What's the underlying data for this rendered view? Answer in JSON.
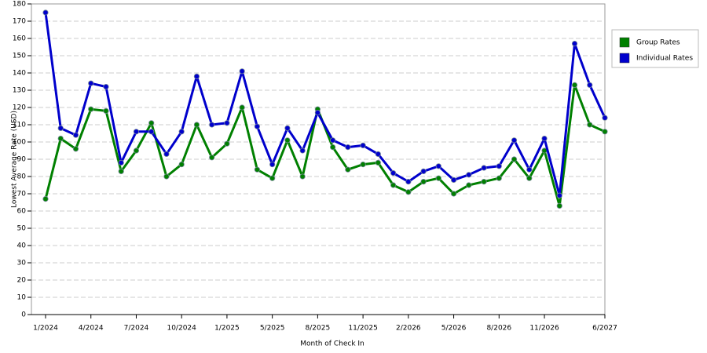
{
  "chart_data": {
    "type": "line",
    "x_label": "Month of Check In",
    "y_label": "Lowest Average Rate (USD)",
    "categories": [
      "1/2024",
      null,
      null,
      "4/2024",
      null,
      null,
      "7/2024",
      null,
      null,
      "10/2024",
      null,
      null,
      "1/2025",
      null,
      null,
      "5/2025",
      null,
      null,
      "8/2025",
      null,
      null,
      "11/2025",
      null,
      null,
      "2/2026",
      null,
      null,
      "5/2026",
      null,
      null,
      "8/2026",
      null,
      null,
      "11/2026",
      null,
      null,
      null,
      "6/2027"
    ],
    "series": [
      {
        "name": "Group Rates",
        "color": "#008000",
        "values": [
          67,
          102,
          96,
          119,
          118,
          83,
          95,
          111,
          80,
          87,
          110,
          91,
          99,
          120,
          84,
          79,
          101,
          80,
          119,
          97,
          84,
          87,
          88,
          75,
          71,
          77,
          79,
          70,
          75,
          77,
          79,
          90,
          79,
          95,
          63,
          133,
          110,
          106
        ]
      },
      {
        "name": "Individual Rates",
        "color": "#0000cc",
        "values": [
          175,
          108,
          104,
          134,
          132,
          88,
          106,
          106,
          93,
          106,
          138,
          110,
          111,
          141,
          109,
          87,
          108,
          95,
          117,
          101,
          97,
          98,
          93,
          82,
          77,
          83,
          86,
          78,
          81,
          85,
          86,
          101,
          84,
          102,
          69,
          157,
          133,
          114
        ]
      }
    ],
    "ylim": [
      0,
      180
    ],
    "yticks": [
      0,
      10,
      20,
      30,
      40,
      50,
      60,
      70,
      80,
      90,
      100,
      110,
      120,
      130,
      140,
      150,
      160,
      170,
      180
    ],
    "grid": true,
    "legend": "right"
  }
}
